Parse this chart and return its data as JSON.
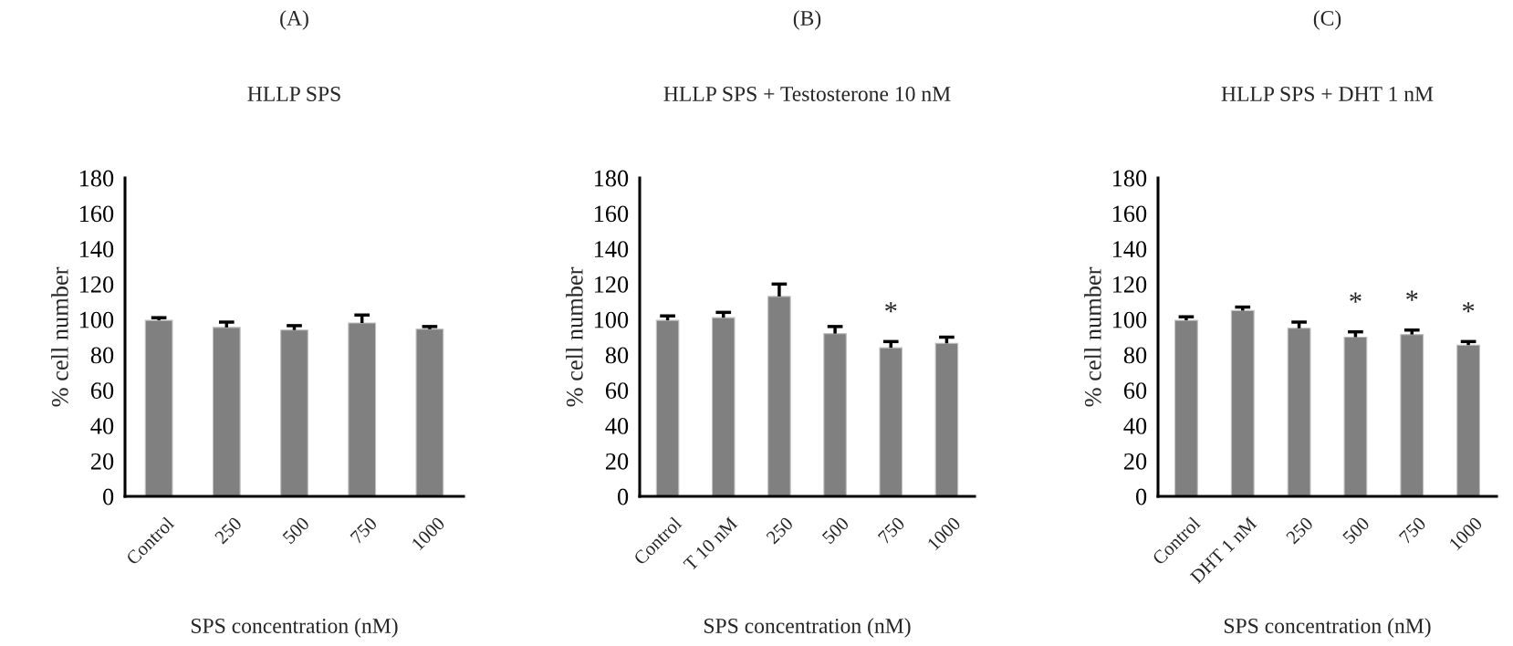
{
  "chart_data": [
    {
      "type": "bar",
      "title": "(A)",
      "subtitle": "HLLP SPS",
      "xlabel": "SPS concentration (nM)",
      "ylabel": "% cell number",
      "categories": [
        "Control",
        "250",
        "500",
        "750",
        "1000"
      ],
      "color": "#808080",
      "values": [
        99.5,
        95.5,
        94,
        98,
        94.5
      ],
      "errors": [
        [
          99.5,
          101
        ],
        [
          95.5,
          98.5
        ],
        [
          94,
          96.5
        ],
        [
          98,
          102.5
        ],
        [
          94.5,
          96
        ]
      ],
      "ylim": [
        0,
        180
      ],
      "yticks": [
        0,
        20,
        40,
        60,
        80,
        100,
        120,
        140,
        160,
        180
      ],
      "grid": false,
      "legend": false
    },
    {
      "type": "bar",
      "title": "(B)",
      "subtitle": "HLLP SPS + Testosterone 10 nM",
      "xlabel": "SPS concentration (nM)",
      "ylabel": "% cell number",
      "categories": [
        "Control",
        "T 10 nM",
        "250",
        "500",
        "750",
        "1000"
      ],
      "color": "#808080",
      "values": [
        99.5,
        101,
        113,
        92,
        84,
        86.5
      ],
      "errors": [
        [
          99.5,
          102
        ],
        [
          101,
          104
        ],
        [
          113,
          120
        ],
        [
          92,
          96
        ],
        [
          84,
          87.5
        ],
        [
          86.5,
          90
        ]
      ],
      "ylim": [
        0,
        180
      ],
      "yticks": [
        0,
        20,
        40,
        60,
        80,
        100,
        120,
        140,
        160,
        180
      ],
      "grid": false,
      "legend": false,
      "annotations": [
        {
          "text": "*",
          "x": "750",
          "y": 87.5
        }
      ]
    },
    {
      "type": "bar",
      "title": "(C)",
      "subtitle": "HLLP SPS + DHT 1 nM",
      "xlabel": "SPS concentration (nM)",
      "ylabel": "% cell number",
      "categories": [
        "Control",
        "DHT 1 nM",
        "250",
        "500",
        "750",
        "1000"
      ],
      "color": "#808080",
      "values": [
        99.5,
        105,
        95,
        90,
        91.5,
        85.5
      ],
      "errors": [
        [
          99.5,
          101.5
        ],
        [
          105,
          107
        ],
        [
          95,
          98.5
        ],
        [
          90,
          93
        ],
        [
          91.5,
          94
        ],
        [
          85.5,
          87.5
        ]
      ],
      "ylim": [
        0,
        180
      ],
      "yticks": [
        0,
        20,
        40,
        60,
        80,
        100,
        120,
        140,
        160,
        180
      ],
      "grid": false,
      "legend": false,
      "annotations": [
        {
          "text": "*",
          "x": "500",
          "y": 93
        },
        {
          "text": "*",
          "x": "750",
          "y": 94
        },
        {
          "text": "*",
          "x": "1000",
          "y": 87.5
        }
      ]
    }
  ]
}
